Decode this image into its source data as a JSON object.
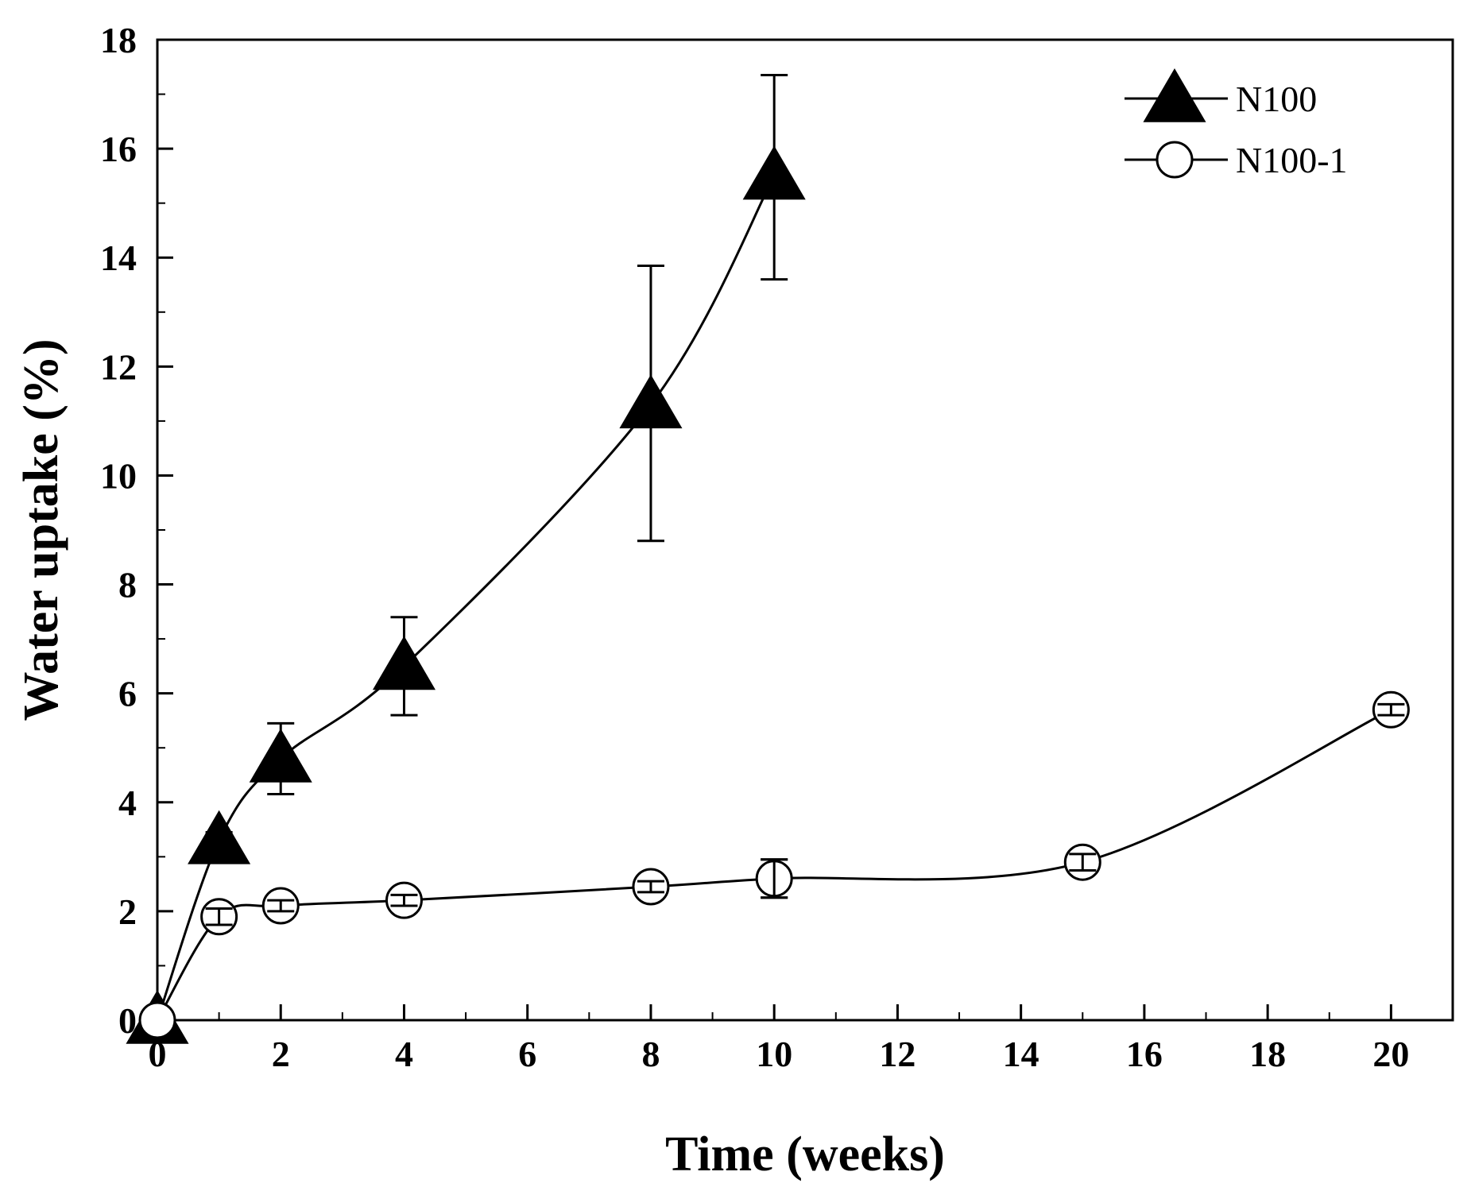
{
  "chart_data": {
    "type": "line",
    "title": "",
    "xlabel": "Time (weeks)",
    "ylabel": "Water uptake (%)",
    "xlim": [
      0,
      21
    ],
    "ylim": [
      0,
      18
    ],
    "xticks": [
      0,
      2,
      4,
      6,
      8,
      10,
      12,
      14,
      16,
      18,
      20
    ],
    "yticks": [
      0,
      2,
      4,
      6,
      8,
      10,
      12,
      14,
      16,
      18
    ],
    "xtick_labels": [
      "0",
      "2",
      "4",
      "6",
      "8",
      "10",
      "12",
      "14",
      "16",
      "18",
      "20"
    ],
    "ytick_labels": [
      "0",
      "2",
      "4",
      "6",
      "8",
      "10",
      "12",
      "14",
      "16",
      "18"
    ],
    "legend_position": "top-right",
    "series": [
      {
        "name": "N100",
        "marker": "filled-triangle",
        "x": [
          0,
          1,
          2,
          4,
          8,
          10
        ],
        "y": [
          0,
          3.3,
          4.8,
          6.5,
          11.3,
          15.5
        ],
        "err_low": [
          0,
          0.4,
          0.65,
          0.9,
          2.5,
          1.9
        ],
        "err_high": [
          0,
          0.15,
          0.65,
          0.9,
          2.55,
          1.85
        ]
      },
      {
        "name": "N100-1",
        "marker": "open-circle",
        "x": [
          0,
          1,
          2,
          4,
          8,
          10,
          15,
          20
        ],
        "y": [
          0,
          1.9,
          2.1,
          2.2,
          2.45,
          2.6,
          2.9,
          5.7
        ],
        "err_low": [
          0,
          0.15,
          0.1,
          0.1,
          0.1,
          0.35,
          0.15,
          0.1
        ],
        "err_high": [
          0,
          0.15,
          0.1,
          0.1,
          0.1,
          0.35,
          0.15,
          0.1
        ]
      }
    ]
  }
}
